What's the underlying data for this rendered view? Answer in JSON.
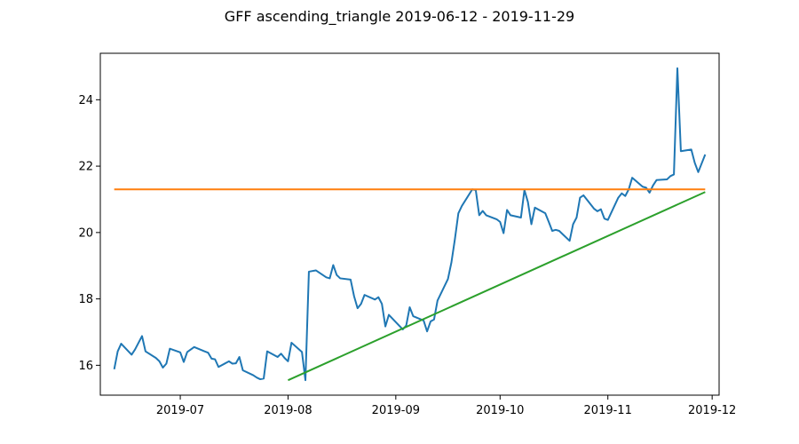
{
  "chart_data": {
    "type": "line",
    "title": "GFF ascending_triangle 2019-06-12 - 2019-11-29",
    "xlabel": "",
    "ylabel": "",
    "grid": false,
    "x_range": [
      "2019-06-08",
      "2019-12-03"
    ],
    "ylim": [
      15.1,
      25.4
    ],
    "x_ticks": [
      "2019-07-01",
      "2019-08-01",
      "2019-09-01",
      "2019-10-01",
      "2019-11-01",
      "2019-12-01"
    ],
    "x_tick_labels": [
      "2019-07",
      "2019-08",
      "2019-09",
      "2019-10",
      "2019-11",
      "2019-12"
    ],
    "y_ticks": [
      16,
      18,
      20,
      22,
      24
    ],
    "y_tick_labels": [
      "16",
      "18",
      "20",
      "22",
      "24"
    ],
    "series": [
      {
        "color": "#1f77b4",
        "x": [
          "2019-06-12",
          "2019-06-13",
          "2019-06-14",
          "2019-06-17",
          "2019-06-18",
          "2019-06-19",
          "2019-06-20",
          "2019-06-21",
          "2019-06-24",
          "2019-06-25",
          "2019-06-26",
          "2019-06-27",
          "2019-06-28",
          "2019-07-01",
          "2019-07-02",
          "2019-07-03",
          "2019-07-05",
          "2019-07-08",
          "2019-07-09",
          "2019-07-10",
          "2019-07-11",
          "2019-07-12",
          "2019-07-15",
          "2019-07-16",
          "2019-07-17",
          "2019-07-18",
          "2019-07-19",
          "2019-07-22",
          "2019-07-23",
          "2019-07-24",
          "2019-07-25",
          "2019-07-26",
          "2019-07-29",
          "2019-07-30",
          "2019-07-31",
          "2019-08-01",
          "2019-08-02",
          "2019-08-05",
          "2019-08-06",
          "2019-08-07",
          "2019-08-08",
          "2019-08-09",
          "2019-08-12",
          "2019-08-13",
          "2019-08-14",
          "2019-08-15",
          "2019-08-16",
          "2019-08-19",
          "2019-08-20",
          "2019-08-21",
          "2019-08-22",
          "2019-08-23",
          "2019-08-26",
          "2019-08-27",
          "2019-08-28",
          "2019-08-29",
          "2019-08-30",
          "2019-09-03",
          "2019-09-04",
          "2019-09-05",
          "2019-09-06",
          "2019-09-09",
          "2019-09-10",
          "2019-09-11",
          "2019-09-12",
          "2019-09-13",
          "2019-09-16",
          "2019-09-17",
          "2019-09-18",
          "2019-09-19",
          "2019-09-20",
          "2019-09-23",
          "2019-09-24",
          "2019-09-25",
          "2019-09-26",
          "2019-09-27",
          "2019-09-30",
          "2019-10-01",
          "2019-10-02",
          "2019-10-03",
          "2019-10-04",
          "2019-10-07",
          "2019-10-08",
          "2019-10-09",
          "2019-10-10",
          "2019-10-11",
          "2019-10-14",
          "2019-10-15",
          "2019-10-16",
          "2019-10-17",
          "2019-10-18",
          "2019-10-21",
          "2019-10-22",
          "2019-10-23",
          "2019-10-24",
          "2019-10-25",
          "2019-10-28",
          "2019-10-29",
          "2019-10-30",
          "2019-10-31",
          "2019-11-01",
          "2019-11-04",
          "2019-11-05",
          "2019-11-06",
          "2019-11-07",
          "2019-11-08",
          "2019-11-11",
          "2019-11-12",
          "2019-11-13",
          "2019-11-14",
          "2019-11-15",
          "2019-11-18",
          "2019-11-19",
          "2019-11-20",
          "2019-11-21",
          "2019-11-22",
          "2019-11-25",
          "2019-11-26",
          "2019-11-27",
          "2019-11-29"
        ],
        "y": [
          15.88,
          16.42,
          16.65,
          16.32,
          16.48,
          16.68,
          16.88,
          16.42,
          16.22,
          16.12,
          15.93,
          16.05,
          16.5,
          16.39,
          16.1,
          16.4,
          16.55,
          16.42,
          16.38,
          16.2,
          16.18,
          15.95,
          16.12,
          16.05,
          16.06,
          16.25,
          15.85,
          15.7,
          15.63,
          15.58,
          15.6,
          16.42,
          16.25,
          16.35,
          16.22,
          16.12,
          16.68,
          16.4,
          15.55,
          18.82,
          18.84,
          18.86,
          18.65,
          18.62,
          19.02,
          18.72,
          18.62,
          18.58,
          18.08,
          17.72,
          17.85,
          18.12,
          17.98,
          18.05,
          17.85,
          17.17,
          17.52,
          17.08,
          17.2,
          17.75,
          17.48,
          17.35,
          17.02,
          17.32,
          17.38,
          17.95,
          18.6,
          19.1,
          19.8,
          20.58,
          20.8,
          21.3,
          21.28,
          20.52,
          20.65,
          20.52,
          20.4,
          20.32,
          19.98,
          20.68,
          20.52,
          20.45,
          21.28,
          20.92,
          20.25,
          20.75,
          20.58,
          20.32,
          20.05,
          20.08,
          20.05,
          19.75,
          20.25,
          20.45,
          21.05,
          21.12,
          20.72,
          20.64,
          20.7,
          20.42,
          20.38,
          21.05,
          21.18,
          21.1,
          21.3,
          21.65,
          21.38,
          21.35,
          21.2,
          21.42,
          21.58,
          21.6,
          21.7,
          21.75,
          24.95,
          22.45,
          22.5,
          22.1,
          21.82,
          22.35
        ]
      },
      {
        "color": "#ff7f0e",
        "x": [
          "2019-06-12",
          "2019-11-29"
        ],
        "y": [
          21.3,
          21.3
        ]
      },
      {
        "color": "#2ca02c",
        "x": [
          "2019-08-01",
          "2019-11-29"
        ],
        "y": [
          15.55,
          21.22
        ]
      }
    ]
  }
}
